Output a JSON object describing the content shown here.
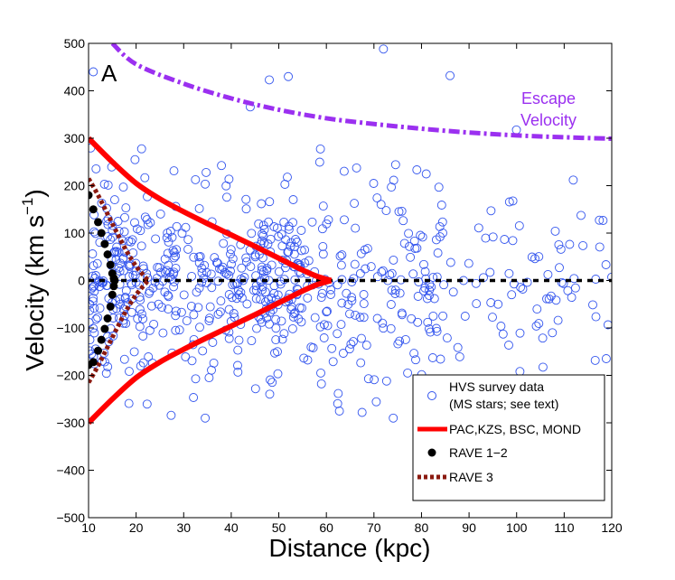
{
  "chart_data": {
    "type": "scatter",
    "panel_label": "A",
    "xlabel": "Distance (kpc)",
    "ylabel_main": "Velocity (km s",
    "ylabel_exp": "−1",
    "ylabel_close": ")",
    "xlim": [
      10,
      120
    ],
    "ylim": [
      -500,
      500
    ],
    "xticks": [
      10,
      20,
      30,
      40,
      50,
      60,
      70,
      80,
      90,
      100,
      110,
      120
    ],
    "yticks": [
      -500,
      -400,
      -300,
      -200,
      -100,
      0,
      100,
      200,
      300,
      400,
      500
    ],
    "ytick_labels": [
      "−500",
      "−400",
      "−300",
      "−200",
      "−100",
      "0",
      "100",
      "200",
      "300",
      "400",
      "500"
    ],
    "colors": {
      "scatter": "#3355ee",
      "pac": "#ff0000",
      "rave12": "#000000",
      "rave3": "#8b1a10",
      "escape": "#9b30f0",
      "zero": "#000000"
    },
    "annotation": {
      "line1": "Escape",
      "line2": "Velocity",
      "color": "#9b30f0"
    },
    "legend": {
      "position": "lower-right",
      "entries": [
        {
          "label": "HVS survey data",
          "label2": "(MS stars; see text)",
          "marker": "open-circle"
        },
        {
          "label": "PAC,KZS, BSC, MOND",
          "marker": "thick-line"
        },
        {
          "label": "RAVE 1−2",
          "marker": "filled-circle"
        },
        {
          "label": "RAVE 3",
          "marker": "dotted-line"
        }
      ]
    },
    "series": {
      "escape_velocity": {
        "name": "Escape Velocity",
        "style": "dash-dot",
        "x": [
          15,
          20,
          30,
          40,
          50,
          60,
          70,
          80,
          90,
          100,
          110,
          120
        ],
        "y": [
          500,
          456,
          415,
          384,
          360,
          342,
          330,
          320,
          312,
          306,
          302,
          299
        ]
      },
      "pac_upper": {
        "name": "PAC,KZS, BSC, MOND",
        "x": [
          10,
          15,
          20,
          25,
          30,
          35,
          40,
          45,
          50,
          55,
          58,
          61
        ],
        "y": [
          300,
          250,
          205,
          172,
          145,
          120,
          96,
          72,
          47,
          22,
          9,
          0
        ]
      },
      "pac_lower": {
        "name": "PAC,KZS, BSC, MOND",
        "x": [
          10,
          15,
          20,
          25,
          30,
          35,
          40,
          45,
          50,
          55,
          58,
          61
        ],
        "y": [
          -300,
          -250,
          -205,
          -172,
          -145,
          -120,
          -96,
          -72,
          -47,
          -22,
          -9,
          0
        ]
      },
      "rave3_upper": {
        "name": "RAVE 3",
        "x": [
          10,
          12,
          14,
          16,
          18,
          20,
          22,
          22.5
        ],
        "y": [
          215,
          180,
          140,
          100,
          62,
          30,
          6,
          0
        ]
      },
      "rave3_lower": {
        "name": "RAVE 3",
        "x": [
          10,
          12,
          14,
          16,
          18,
          20,
          22,
          22.5
        ],
        "y": [
          -215,
          -180,
          -140,
          -100,
          -62,
          -30,
          -6,
          0
        ]
      },
      "rave12_points": {
        "name": "RAVE 1−2",
        "x": [
          10,
          11,
          12,
          12.7,
          13.4,
          14,
          14.6,
          15,
          15.3,
          15.5,
          15.3,
          15,
          14.6,
          14,
          13.4,
          12.7,
          12,
          11,
          10
        ],
        "y": [
          180,
          150,
          123,
          100,
          77,
          55,
          33,
          15,
          5,
          0,
          -12,
          -30,
          -55,
          -80,
          -102,
          -125,
          -148,
          -172,
          -178
        ]
      },
      "zero_line": {
        "name": "zero",
        "x": [
          10,
          120
        ],
        "y": [
          0,
          0
        ]
      }
    },
    "survey_points_count": 700,
    "survey_points_seed": 7
  }
}
